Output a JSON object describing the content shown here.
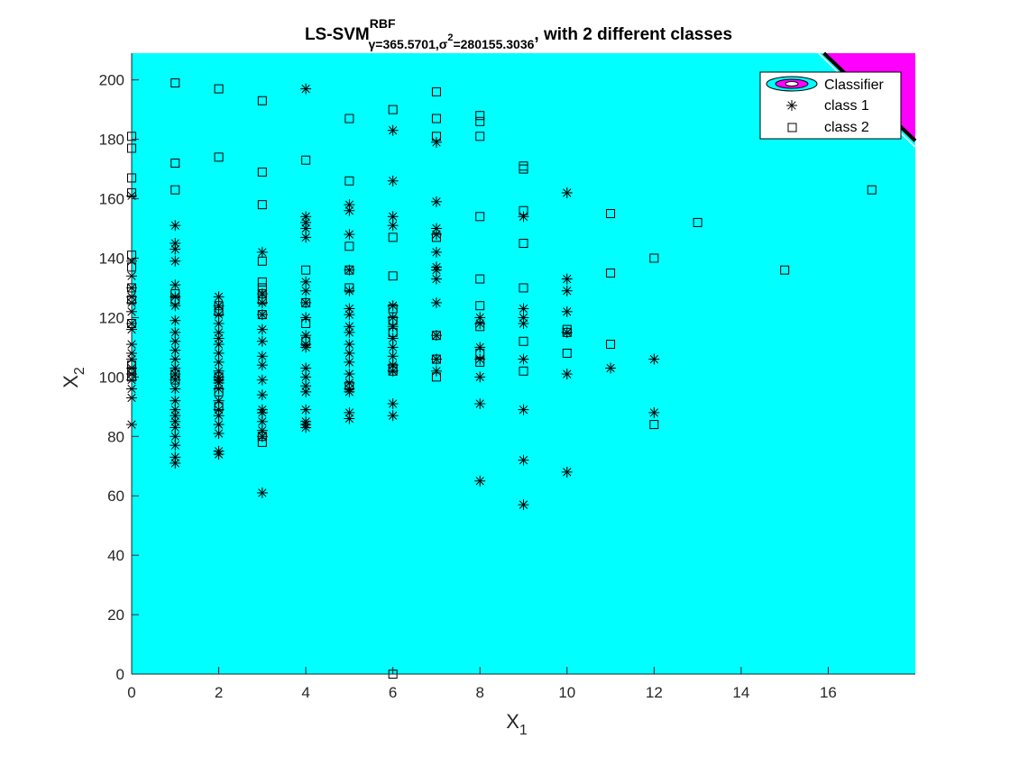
{
  "chart_data": {
    "type": "scatter",
    "title": {
      "main": "LS-SVM",
      "superscript": "RBF",
      "sub_gamma": "γ=365.5701,",
      "sub_sigma": "σ",
      "sub_sigma_power": "2",
      "sub_sigma_value": "=280155.3036",
      "suffix": ", with 2 different classes"
    },
    "xlabel": "X",
    "xlabel_sub": "1",
    "ylabel": "X",
    "ylabel_sub": "2",
    "xlim": [
      0,
      18
    ],
    "ylim": [
      0,
      209
    ],
    "xticks": [
      0,
      2,
      4,
      6,
      8,
      10,
      12,
      14,
      16
    ],
    "yticks": [
      0,
      20,
      40,
      60,
      80,
      100,
      120,
      140,
      160,
      180,
      200
    ],
    "grid": false,
    "legend_position": "top-right",
    "legend": [
      "Classifier",
      "class 1",
      "class 2"
    ],
    "colors": {
      "background_region": "#00ffff",
      "class2_region": "#ff00ff",
      "boundary": "#000000",
      "markers": "#000000"
    },
    "class2_region_corner": [
      [
        15.9,
        209
      ],
      [
        18,
        209
      ],
      [
        18,
        179.5
      ]
    ],
    "series": [
      {
        "name": "class 1",
        "marker": "asterisk",
        "points": [
          [
            0,
            84
          ],
          [
            0,
            93
          ],
          [
            0,
            96
          ],
          [
            0,
            99
          ],
          [
            0,
            101
          ],
          [
            0,
            103
          ],
          [
            0,
            106
          ],
          [
            0,
            108
          ],
          [
            0,
            111
          ],
          [
            0,
            116
          ],
          [
            0,
            118
          ],
          [
            0,
            122
          ],
          [
            0,
            125
          ],
          [
            0,
            127
          ],
          [
            0,
            130
          ],
          [
            0,
            134
          ],
          [
            0,
            139
          ],
          [
            0,
            161
          ],
          [
            1,
            71
          ],
          [
            1,
            73
          ],
          [
            1,
            77
          ],
          [
            1,
            80
          ],
          [
            1,
            83
          ],
          [
            1,
            85
          ],
          [
            1,
            87
          ],
          [
            1,
            89
          ],
          [
            1,
            92
          ],
          [
            1,
            96
          ],
          [
            1,
            99
          ],
          [
            1,
            101
          ],
          [
            1,
            103
          ],
          [
            1,
            106
          ],
          [
            1,
            109
          ],
          [
            1,
            112
          ],
          [
            1,
            115
          ],
          [
            1,
            119
          ],
          [
            1,
            124
          ],
          [
            1,
            127
          ],
          [
            1,
            131
          ],
          [
            1,
            139
          ],
          [
            1,
            143
          ],
          [
            1,
            145
          ],
          [
            1,
            151
          ],
          [
            2,
            74
          ],
          [
            2,
            75
          ],
          [
            2,
            81
          ],
          [
            2,
            84
          ],
          [
            2,
            87
          ],
          [
            2,
            89
          ],
          [
            2,
            92
          ],
          [
            2,
            96
          ],
          [
            2,
            98
          ],
          [
            2,
            99
          ],
          [
            2,
            100
          ],
          [
            2,
            102
          ],
          [
            2,
            105
          ],
          [
            2,
            108
          ],
          [
            2,
            111
          ],
          [
            2,
            113
          ],
          [
            2,
            115
          ],
          [
            2,
            118
          ],
          [
            2,
            121
          ],
          [
            2,
            124
          ],
          [
            2,
            127
          ],
          [
            3,
            61
          ],
          [
            3,
            80
          ],
          [
            3,
            82
          ],
          [
            3,
            85
          ],
          [
            3,
            88
          ],
          [
            3,
            89
          ],
          [
            3,
            94
          ],
          [
            3,
            99
          ],
          [
            3,
            104
          ],
          [
            3,
            107
          ],
          [
            3,
            112
          ],
          [
            3,
            116
          ],
          [
            3,
            121
          ],
          [
            3,
            125
          ],
          [
            3,
            128
          ],
          [
            3,
            142
          ],
          [
            4,
            83
          ],
          [
            4,
            84
          ],
          [
            4,
            85
          ],
          [
            4,
            89
          ],
          [
            4,
            95
          ],
          [
            4,
            97
          ],
          [
            4,
            100
          ],
          [
            4,
            103
          ],
          [
            4,
            110
          ],
          [
            4,
            111
          ],
          [
            4,
            114
          ],
          [
            4,
            120
          ],
          [
            4,
            125
          ],
          [
            4,
            129
          ],
          [
            4,
            132
          ],
          [
            4,
            147
          ],
          [
            4,
            150
          ],
          [
            4,
            152
          ],
          [
            4,
            154
          ],
          [
            4,
            197
          ],
          [
            5,
            86
          ],
          [
            5,
            88
          ],
          [
            5,
            95
          ],
          [
            5,
            96
          ],
          [
            5,
            98
          ],
          [
            5,
            101
          ],
          [
            5,
            105
          ],
          [
            5,
            108
          ],
          [
            5,
            111
          ],
          [
            5,
            115
          ],
          [
            5,
            117
          ],
          [
            5,
            121
          ],
          [
            5,
            123
          ],
          [
            5,
            129
          ],
          [
            5,
            136
          ],
          [
            5,
            148
          ],
          [
            5,
            156
          ],
          [
            5,
            158
          ],
          [
            6,
            87
          ],
          [
            6,
            91
          ],
          [
            6,
            102
          ],
          [
            6,
            104
          ],
          [
            6,
            107
          ],
          [
            6,
            110
          ],
          [
            6,
            113
          ],
          [
            6,
            117
          ],
          [
            6,
            120
          ],
          [
            6,
            124
          ],
          [
            6,
            151
          ],
          [
            6,
            154
          ],
          [
            6,
            166
          ],
          [
            6,
            183
          ],
          [
            7,
            102
          ],
          [
            7,
            106
          ],
          [
            7,
            114
          ],
          [
            7,
            125
          ],
          [
            7,
            133
          ],
          [
            7,
            136
          ],
          [
            7,
            137
          ],
          [
            7,
            142
          ],
          [
            7,
            148
          ],
          [
            7,
            150
          ],
          [
            7,
            159
          ],
          [
            7,
            179
          ],
          [
            8,
            65
          ],
          [
            8,
            91
          ],
          [
            8,
            100
          ],
          [
            8,
            106
          ],
          [
            8,
            110
          ],
          [
            8,
            118
          ],
          [
            8,
            120
          ],
          [
            9,
            57
          ],
          [
            9,
            72
          ],
          [
            9,
            89
          ],
          [
            9,
            106
          ],
          [
            9,
            118
          ],
          [
            9,
            120
          ],
          [
            9,
            123
          ],
          [
            9,
            154
          ],
          [
            10,
            68
          ],
          [
            10,
            101
          ],
          [
            10,
            115
          ],
          [
            10,
            122
          ],
          [
            10,
            129
          ],
          [
            10,
            133
          ],
          [
            10,
            162
          ],
          [
            11,
            103
          ],
          [
            12,
            88
          ],
          [
            12,
            106
          ]
        ]
      },
      {
        "name": "class 2",
        "marker": "square",
        "points": [
          [
            0,
            100
          ],
          [
            0,
            102
          ],
          [
            0,
            104
          ],
          [
            0,
            118
          ],
          [
            0,
            126
          ],
          [
            0,
            130
          ],
          [
            0,
            137
          ],
          [
            0,
            141
          ],
          [
            0,
            162
          ],
          [
            0,
            167
          ],
          [
            0,
            177
          ],
          [
            0,
            181
          ],
          [
            1,
            99
          ],
          [
            1,
            101
          ],
          [
            1,
            126
          ],
          [
            1,
            128
          ],
          [
            1,
            163
          ],
          [
            1,
            172
          ],
          [
            1,
            199
          ],
          [
            2,
            90
          ],
          [
            2,
            95
          ],
          [
            2,
            100
          ],
          [
            2,
            122
          ],
          [
            2,
            124
          ],
          [
            2,
            174
          ],
          [
            2,
            197
          ],
          [
            3,
            78
          ],
          [
            3,
            80
          ],
          [
            3,
            121
          ],
          [
            3,
            126
          ],
          [
            3,
            128
          ],
          [
            3,
            130
          ],
          [
            3,
            132
          ],
          [
            3,
            139
          ],
          [
            3,
            158
          ],
          [
            3,
            169
          ],
          [
            3,
            193
          ],
          [
            4,
            112
          ],
          [
            4,
            118
          ],
          [
            4,
            125
          ],
          [
            4,
            136
          ],
          [
            4,
            173
          ],
          [
            5,
            97
          ],
          [
            5,
            130
          ],
          [
            5,
            136
          ],
          [
            5,
            144
          ],
          [
            5,
            166
          ],
          [
            5,
            187
          ],
          [
            6,
            0
          ],
          [
            6,
            102
          ],
          [
            6,
            103
          ],
          [
            6,
            115
          ],
          [
            6,
            119
          ],
          [
            6,
            123
          ],
          [
            6,
            134
          ],
          [
            6,
            147
          ],
          [
            6,
            190
          ],
          [
            7,
            100
          ],
          [
            7,
            106
          ],
          [
            7,
            114
          ],
          [
            7,
            147
          ],
          [
            7,
            181
          ],
          [
            7,
            187
          ],
          [
            7,
            196
          ],
          [
            8,
            105
          ],
          [
            8,
            108
          ],
          [
            8,
            117
          ],
          [
            8,
            124
          ],
          [
            8,
            133
          ],
          [
            8,
            154
          ],
          [
            8,
            181
          ],
          [
            8,
            186
          ],
          [
            8,
            188
          ],
          [
            9,
            102
          ],
          [
            9,
            112
          ],
          [
            9,
            130
          ],
          [
            9,
            145
          ],
          [
            9,
            156
          ],
          [
            9,
            170
          ],
          [
            9,
            171
          ],
          [
            10,
            108
          ],
          [
            10,
            115
          ],
          [
            10,
            116
          ],
          [
            11,
            111
          ],
          [
            11,
            135
          ],
          [
            11,
            155
          ],
          [
            12,
            84
          ],
          [
            12,
            140
          ],
          [
            13,
            152
          ],
          [
            15,
            136
          ],
          [
            17,
            163
          ]
        ]
      }
    ]
  }
}
